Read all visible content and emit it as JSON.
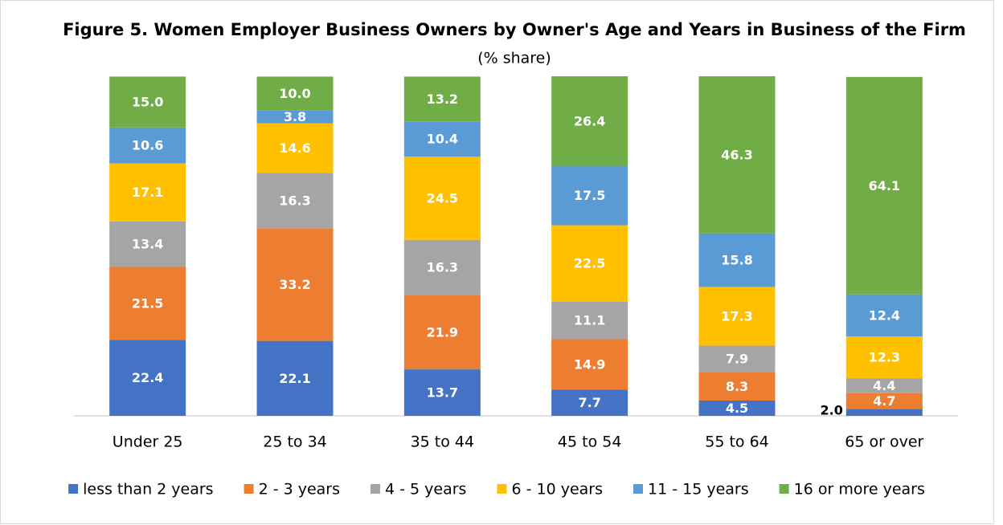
{
  "chart_data": {
    "type": "stacked_bar",
    "title": "Figure 5. Women Employer Business Owners by Owner's Age and Years in Business of the Firm",
    "subtitle": "(% share)",
    "categories": [
      "Under 25",
      "25 to 34",
      "35 to 44",
      "45 to 54",
      "55 to 64",
      "65 or over"
    ],
    "series": [
      {
        "name": "less than 2 years",
        "color": "#4472c4",
        "values": [
          22.4,
          22.1,
          13.7,
          7.7,
          4.5,
          2.0
        ],
        "value_labels": [
          "22.4",
          "22.1",
          "13.7",
          "7.7",
          "4.5",
          "2.0"
        ]
      },
      {
        "name": "2 - 3 years",
        "color": "#ed7d31",
        "values": [
          21.5,
          33.2,
          21.9,
          14.9,
          8.3,
          4.7
        ],
        "value_labels": [
          "21.5",
          "33.2",
          "21.9",
          "14.9",
          "8.3",
          "4.7"
        ]
      },
      {
        "name": "4 - 5 years",
        "color": "#a5a5a5",
        "values": [
          13.4,
          16.3,
          16.3,
          11.1,
          7.9,
          4.4
        ],
        "value_labels": [
          "13.4",
          "16.3",
          "16.3",
          "11.1",
          "7.9",
          "4.4"
        ]
      },
      {
        "name": "6 - 10 years",
        "color": "#ffc000",
        "values": [
          17.1,
          14.6,
          24.5,
          22.5,
          17.3,
          12.3
        ],
        "value_labels": [
          "17.1",
          "14.6",
          "24.5",
          "22.5",
          "17.3",
          "12.3"
        ]
      },
      {
        "name": "11 - 15 years",
        "color": "#5b9bd5",
        "values": [
          10.6,
          3.8,
          10.4,
          17.5,
          15.8,
          12.4
        ],
        "value_labels": [
          "10.6",
          "3.8",
          "10.4",
          "17.5",
          "15.8",
          "12.4"
        ]
      },
      {
        "name": "16 or more years",
        "color": "#70ad47",
        "values": [
          15.0,
          10.0,
          13.2,
          26.4,
          46.3,
          64.1
        ],
        "value_labels": [
          "15.0",
          "10.0",
          "13.2",
          "26.4",
          "46.3",
          "64.1"
        ]
      }
    ],
    "legend": "bottom"
  }
}
